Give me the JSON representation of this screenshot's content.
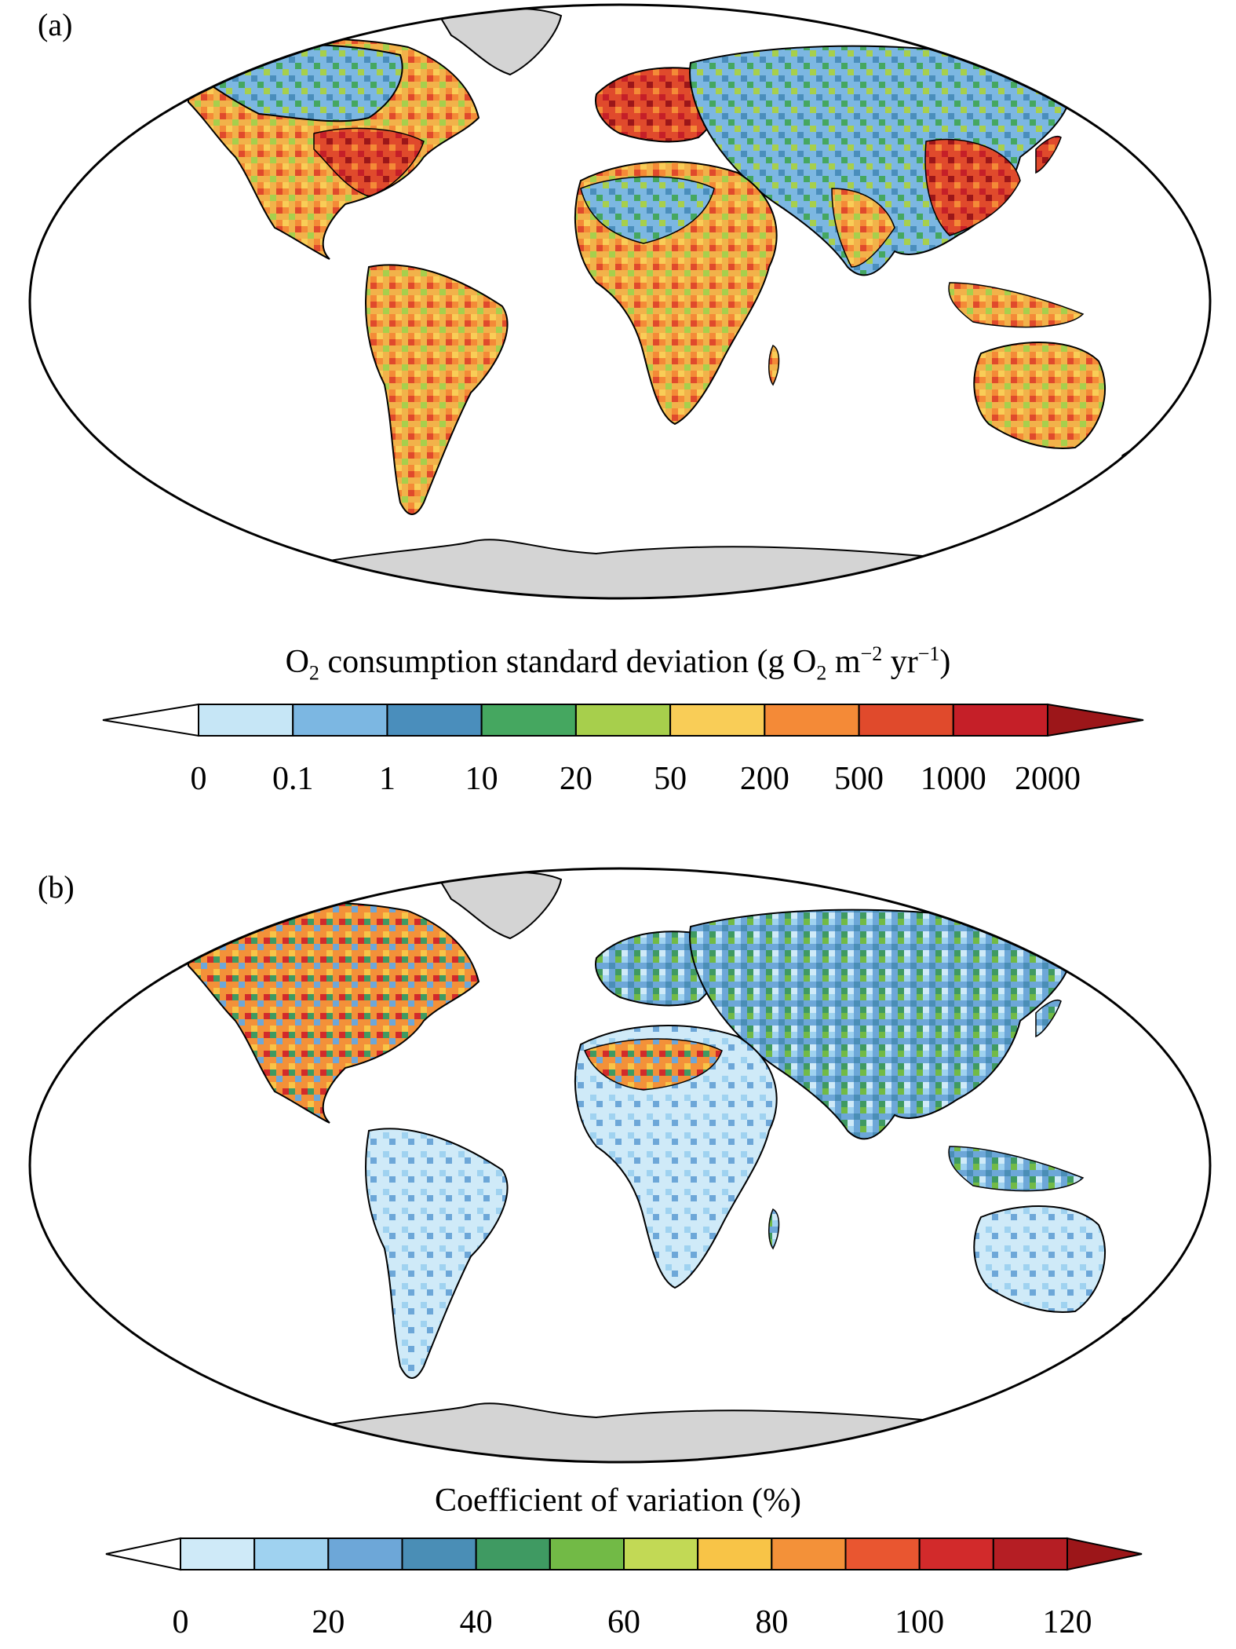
{
  "panel_a": {
    "label": "(a)",
    "colorbar": {
      "title_text": "O",
      "title_sub": "2",
      "title_rest": " consumption standard deviation (g O",
      "title_sub2": "2",
      "title_m": " m",
      "title_sup1": "−2",
      "title_yr": " yr",
      "title_sup2": "−1",
      "title_close": ")",
      "ticks": [
        "0",
        "0.1",
        "1",
        "10",
        "20",
        "50",
        "200",
        "500",
        "1000",
        "2000"
      ],
      "colors": [
        "#c6e6f6",
        "#7cb7e2",
        "#4a8ebc",
        "#45a760",
        "#a7cf4c",
        "#f9cd57",
        "#f48a37",
        "#e04a2c",
        "#c51f28"
      ],
      "under_color": "#ffffff",
      "over_color": "#9c1619"
    }
  },
  "panel_b": {
    "label": "(b)",
    "colorbar": {
      "title": "Coefficient of variation (%)",
      "ticks": [
        "0",
        "20",
        "40",
        "60",
        "80",
        "100",
        "120"
      ],
      "colors": [
        "#cfeaf8",
        "#9fd2f0",
        "#6da7d8",
        "#4a8eb6",
        "#3f9a62",
        "#72ba46",
        "#c2d955",
        "#f8c447",
        "#f39139",
        "#e95630",
        "#d22a2b",
        "#b51e24"
      ],
      "under_color": "#ffffff",
      "over_color": "#9c1619"
    }
  },
  "map_colors": {
    "land_fill_a": "#f2b24a",
    "land_fill_b": "#7fb3d8",
    "ice": "#d4d4d4",
    "ocean": "#ffffff"
  }
}
